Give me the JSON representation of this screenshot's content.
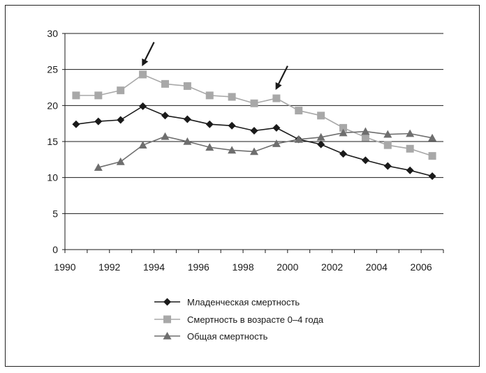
{
  "chart_data": {
    "type": "line",
    "title": "",
    "xlabel": "",
    "ylabel": "",
    "xlim": [
      1990,
      2007
    ],
    "ylim": [
      0,
      30
    ],
    "x_ticks": [
      "1990",
      "1992",
      "1994",
      "1996",
      "1998",
      "2000",
      "2002",
      "2004",
      "2006"
    ],
    "y_ticks": [
      "0",
      "5",
      "10",
      "15",
      "20",
      "25",
      "30"
    ],
    "grid": true,
    "legend_position": "bottom",
    "series": [
      {
        "name": "Младенческая смертность",
        "marker": "diamond",
        "color": "#1a1a1a",
        "x": [
          1990.5,
          1991.5,
          1992.5,
          1993.5,
          1994.5,
          1995.5,
          1996.5,
          1997.5,
          1998.5,
          1999.5,
          2000.5,
          2001.5,
          2002.5,
          2003.5,
          2004.5,
          2005.5,
          2006.5
        ],
        "values": [
          17.4,
          17.8,
          18.0,
          19.9,
          18.6,
          18.1,
          17.4,
          17.2,
          16.5,
          16.9,
          15.3,
          14.6,
          13.3,
          12.4,
          11.6,
          11.0,
          10.2
        ]
      },
      {
        "name": "Смертность в возрасте 0–4 года",
        "marker": "square",
        "color": "#a8a8a8",
        "x": [
          1990.5,
          1991.5,
          1992.5,
          1993.5,
          1994.5,
          1995.5,
          1996.5,
          1997.5,
          1998.5,
          1999.5,
          2000.5,
          2001.5,
          2002.5,
          2003.5,
          2004.5,
          2005.5,
          2006.5
        ],
        "values": [
          21.4,
          21.4,
          22.1,
          24.3,
          23.0,
          22.7,
          21.4,
          21.2,
          20.3,
          21.0,
          19.3,
          18.6,
          16.9,
          15.6,
          14.5,
          14.0,
          13.0
        ]
      },
      {
        "name": "Общая смертность",
        "marker": "triangle",
        "color": "#6e6e6e",
        "x": [
          1991.5,
          1992.5,
          1993.5,
          1994.5,
          1995.5,
          1996.5,
          1997.5,
          1998.5,
          1999.5,
          2000.5,
          2001.5,
          2002.5,
          2003.5,
          2004.5,
          2005.5,
          2006.5
        ],
        "values": [
          11.4,
          12.2,
          14.5,
          15.7,
          15.0,
          14.2,
          13.8,
          13.6,
          14.7,
          15.3,
          15.6,
          16.2,
          16.4,
          16.0,
          16.1,
          15.5
        ]
      }
    ],
    "annotations": [
      {
        "type": "arrow",
        "target_x": 1993.5,
        "target_y": 25.6
      },
      {
        "type": "arrow",
        "target_x": 1999.5,
        "target_y": 22.3
      }
    ]
  }
}
